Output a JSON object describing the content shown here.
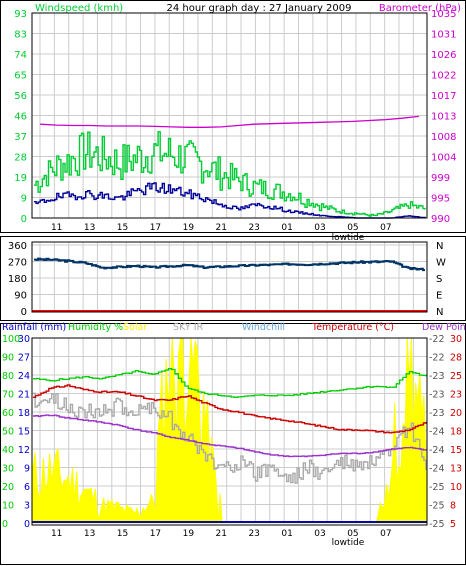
{
  "colors": {
    "windspeed": "#00cc33",
    "wind_avg": "#000099",
    "barometer": "#cc00cc",
    "direction": "#003366",
    "rain": "#0000cc",
    "humidity": "#00cc00",
    "solar": "#ffff00",
    "sky_ir": "#aaaaaa",
    "windchill": "#66aadd",
    "temperature": "#cc0000",
    "dew_point": "#9933cc",
    "grid": "#cccccc"
  },
  "panel1": {
    "title": "24 hour graph day : 27 January 2009",
    "left_label": "Windspeed (kmh)",
    "right_label": "Barometer (hPa)",
    "left_ticks": [
      "93",
      "83",
      "74",
      "65",
      "56",
      "46",
      "37",
      "28",
      "19",
      "9",
      "0"
    ],
    "right_ticks": [
      "1035",
      "1031",
      "1026",
      "1022",
      "1017",
      "1013",
      "1008",
      "1004",
      "999",
      "995",
      "990"
    ],
    "x_ticks": [
      "11",
      "13",
      "15",
      "17",
      "19",
      "21",
      "23",
      "01",
      "03",
      "05",
      "07"
    ],
    "marker": "lowtide"
  },
  "panel2": {
    "left_ticks": [
      "360",
      "270",
      "180",
      "90",
      "0"
    ],
    "right_ticks": [
      "N",
      "W",
      "S",
      "E",
      "N"
    ]
  },
  "panel3": {
    "legend": {
      "rain": "Rainfall (mm)",
      "humidity": "Humidity %",
      "solar": "Solar",
      "sky": "SKY IR",
      "windchill": "Windchill",
      "temperature": "Temperature (°C)",
      "dew": "Dew Point"
    },
    "rain_ticks": [
      "30",
      "27",
      "24",
      "21",
      "18",
      "15",
      "12",
      "9",
      "6",
      "3",
      "0"
    ],
    "hum_ticks": [
      "100",
      "90",
      "80",
      "70",
      "60",
      "50",
      "40",
      "30",
      "20",
      "10",
      "0"
    ],
    "sky_ticks": [
      "-22",
      "-22",
      "-23",
      "-23",
      "-23",
      "-24",
      "-24",
      "-24",
      "-25",
      "-25",
      "-25"
    ],
    "temp_ticks": [
      "30",
      "28",
      "25",
      "23",
      "20",
      "18",
      "15",
      "13",
      "10",
      "8",
      "5"
    ],
    "x_ticks": [
      "11",
      "13",
      "15",
      "17",
      "19",
      "21",
      "23",
      "01",
      "03",
      "05",
      "07"
    ],
    "marker": "lowtide"
  },
  "chart_data": [
    {
      "type": "line",
      "title": "24 hour graph day : 27 January 2009",
      "x": [
        "10",
        "11",
        "12",
        "13",
        "14",
        "15",
        "16",
        "17",
        "18",
        "19",
        "20",
        "21",
        "22",
        "23",
        "00",
        "01",
        "02",
        "03",
        "04",
        "05",
        "06",
        "07",
        "08",
        "09"
      ],
      "series": [
        {
          "name": "Windspeed (kmh)",
          "axis": "left",
          "values": [
            15,
            22,
            26,
            30,
            28,
            25,
            27,
            30,
            29,
            27,
            24,
            20,
            17,
            14,
            13,
            11,
            8,
            5,
            3,
            2,
            1,
            3,
            6,
            4
          ]
        },
        {
          "name": "Windspeed (kmh)",
          "axis": "left",
          "values": [
            6,
            9,
            10,
            11,
            10,
            9,
            12,
            14,
            13,
            11,
            9,
            6,
            4,
            6,
            5,
            3,
            2,
            1,
            0.5,
            0,
            0,
            0,
            1,
            0
          ]
        },
        {
          "name": "Barometer (hPa)",
          "axis": "right",
          "values": [
            1010.6,
            1010.4,
            1010.3,
            1010.3,
            1010.2,
            1010.2,
            1010.2,
            1010.1,
            1010.0,
            1009.9,
            1009.9,
            1010.0,
            1010.3,
            1010.6,
            1010.7,
            1010.8,
            1010.9,
            1011.0,
            1011.1,
            1011.2,
            1011.4,
            1011.6,
            1011.9,
            1012.3
          ]
        }
      ],
      "left_range": [
        0,
        93
      ],
      "right_range": [
        990,
        1035
      ],
      "grid": true
    },
    {
      "type": "line",
      "x": [
        "10",
        "11",
        "12",
        "13",
        "14",
        "15",
        "16",
        "17",
        "18",
        "19",
        "20",
        "21",
        "22",
        "23",
        "00",
        "01",
        "02",
        "03",
        "04",
        "05",
        "06",
        "07",
        "08",
        "09"
      ],
      "series": [
        {
          "axis": "left",
          "values": [
            282,
            280,
            272,
            262,
            236,
            240,
            246,
            238,
            244,
            250,
            238,
            242,
            246,
            250,
            252,
            256,
            254,
            258,
            262,
            266,
            268,
            270,
            232,
            226
          ]
        }
      ],
      "left_range": [
        0,
        360
      ],
      "grid": true
    },
    {
      "type": "line",
      "x": [
        "10",
        "11",
        "12",
        "13",
        "14",
        "15",
        "16",
        "17",
        "18",
        "19",
        "20",
        "21",
        "22",
        "23",
        "00",
        "01",
        "02",
        "03",
        "04",
        "05",
        "06",
        "07",
        "08",
        "09"
      ],
      "series": [
        {
          "name": "Humidity %",
          "axis": "hum",
          "values": [
            78,
            77,
            78,
            79,
            78,
            80,
            82,
            80,
            84,
            73,
            70,
            69,
            68,
            69,
            69,
            69,
            70,
            71,
            72,
            73,
            74,
            73,
            82,
            79
          ]
        },
        {
          "name": "Solar",
          "axis": "hum",
          "values": [
            25,
            28,
            24,
            18,
            10,
            8,
            5,
            12,
            92,
            100,
            62,
            0,
            0,
            0,
            0,
            0,
            0,
            0,
            0,
            0,
            0,
            22,
            98,
            25
          ]
        },
        {
          "name": "SKY IR",
          "axis": "sky",
          "values": [
            -23.0,
            -23.0,
            -23.1,
            -23.2,
            -23.2,
            -23.1,
            -23.2,
            -23.1,
            -23.3,
            -23.6,
            -23.9,
            -24.1,
            -24.0,
            -24.2,
            -24.1,
            -24.3,
            -24.1,
            -24.2,
            -24.0,
            -24.1,
            -24.0,
            -23.9,
            -23.4,
            -24.1
          ]
        },
        {
          "name": "Temperature (°C)",
          "axis": "temp",
          "values": [
            22.0,
            23.2,
            23.6,
            23.0,
            22.7,
            22.7,
            22.2,
            21.6,
            21.6,
            22.2,
            21.2,
            20.4,
            20.0,
            19.4,
            19.1,
            18.8,
            18.4,
            18.0,
            17.6,
            17.6,
            17.4,
            17.2,
            17.6,
            18.6
          ]
        },
        {
          "name": "Dew Point",
          "axis": "temp",
          "values": [
            19.4,
            19.6,
            19.2,
            18.9,
            18.6,
            18.2,
            17.6,
            17.2,
            16.6,
            16.2,
            15.7,
            15.4,
            15.1,
            14.6,
            14.2,
            14.0,
            14.0,
            14.2,
            14.4,
            14.4,
            14.6,
            15.0,
            15.2,
            14.8
          ]
        },
        {
          "name": "Rainfall (mm)",
          "axis": "rain",
          "values": [
            0,
            0,
            0,
            0,
            0,
            0,
            0,
            0,
            0,
            0,
            0,
            0,
            0,
            0,
            0,
            0,
            0,
            0,
            0,
            0,
            0,
            0,
            0,
            0
          ]
        }
      ],
      "rain_range": [
        0,
        30
      ],
      "hum_range": [
        0,
        100
      ],
      "sky_range": [
        -25,
        -22
      ],
      "temp_range": [
        5,
        30
      ],
      "grid": true
    }
  ]
}
